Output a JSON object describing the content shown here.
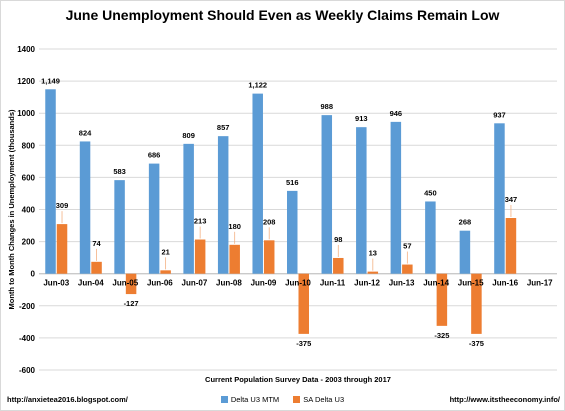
{
  "colors": {
    "series_1": "#5b9bd5",
    "series_2": "#ed7d31"
  },
  "chart_data": {
    "type": "bar",
    "title": "June Unemployment Should Even as Weekly Claims Remain Low",
    "xlabel": "Current Population Survey Data - 2003 through 2017",
    "ylabel": "Month to Month Changes in Unemployment (thousands)",
    "ylim": [
      -600,
      1400
    ],
    "yticks": [
      "-600",
      "-400",
      "-200",
      "0",
      "200",
      "400",
      "600",
      "800",
      "1000",
      "1200",
      "1400"
    ],
    "grid": true,
    "legend_position": "bottom",
    "categories": [
      "Jun-03",
      "Jun-04",
      "Jun-05",
      "Jun-06",
      "Jun-07",
      "Jun-08",
      "Jun-09",
      "Jun-10",
      "Jun-11",
      "Jun-12",
      "Jun-13",
      "Jun-14",
      "Jun-15",
      "Jun-16",
      "Jun-17"
    ],
    "series": [
      {
        "name": "Delta U3 MTM",
        "values": [
          1149,
          824,
          583,
          686,
          809,
          857,
          1122,
          516,
          988,
          913,
          946,
          450,
          268,
          937,
          null
        ],
        "labels": [
          "1,149",
          "824",
          "583",
          "686",
          "809",
          "857",
          "1,122",
          "516",
          "988",
          "913",
          "946",
          "450",
          "268",
          "937",
          ""
        ]
      },
      {
        "name": "SA Delta U3",
        "values": [
          309,
          74,
          -127,
          21,
          213,
          180,
          208,
          -375,
          98,
          13,
          57,
          -325,
          -375,
          347,
          null
        ],
        "labels": [
          "309",
          "74",
          "-127",
          "21",
          "213",
          "180",
          "208",
          "-375",
          "98",
          "13",
          "57",
          "-325",
          "-375",
          "347",
          ""
        ]
      }
    ]
  },
  "footer": {
    "left_url": "http://anxietea2016.blogspot.com/",
    "right_url": "http://www.itstheeconomy.info/"
  }
}
